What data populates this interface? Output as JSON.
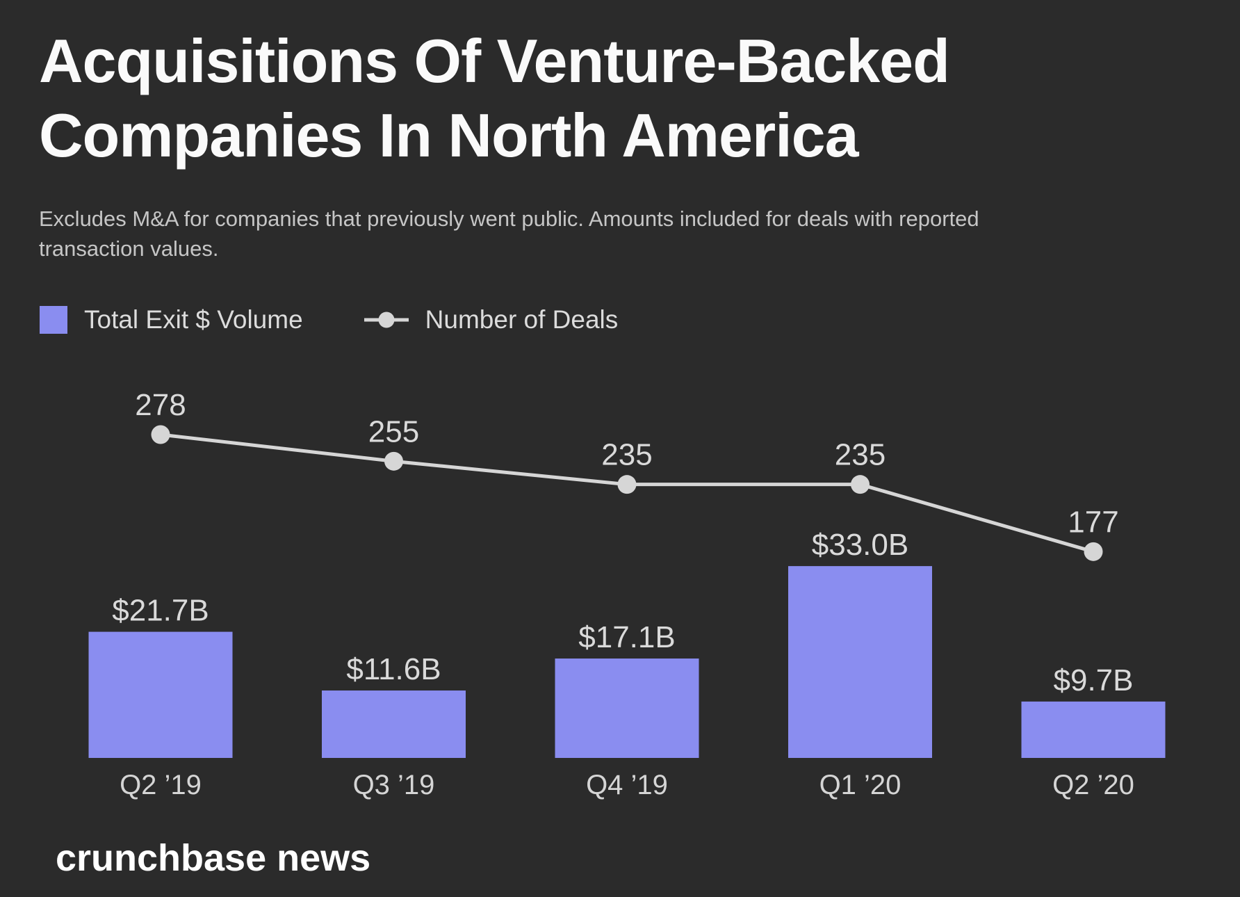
{
  "header": {
    "title_lines": [
      "Acquisitions Of Venture-Backed",
      "Companies In North America"
    ],
    "subtitle_lines": [
      "Excludes M&A for companies that previously went public. Amounts included for deals with reported",
      "transaction values."
    ]
  },
  "legend": {
    "items": [
      {
        "label": "Total Exit $ Volume",
        "marker": "square",
        "color": "#8a8df0"
      },
      {
        "label": "Number of Deals",
        "marker": "line-dot",
        "color": "#d6d6d6"
      }
    ]
  },
  "chart_data": {
    "type": "bar",
    "title": "Acquisitions Of Venture-Backed Companies In North America",
    "subtitle": "Excludes M&A for companies that previously went public. Amounts included for deals with reported transaction values.",
    "categories": [
      "Q2 ’19",
      "Q3 ’19",
      "Q4 ’19",
      "Q1 ’20",
      "Q2 ’20"
    ],
    "series": [
      {
        "name": "Total Exit $ Volume",
        "type": "bar",
        "unit": "USD billions",
        "values": [
          21.7,
          11.6,
          17.1,
          33.0,
          9.7
        ],
        "labels": [
          "$21.7B",
          "$11.6B",
          "$17.1B",
          "$33.0B",
          "$9.7B"
        ],
        "color": "#8a8df0"
      },
      {
        "name": "Number of Deals",
        "type": "line",
        "values": [
          278,
          255,
          235,
          235,
          177
        ],
        "labels": [
          "278",
          "255",
          "235",
          "235",
          "177"
        ],
        "color": "#d6d6d6"
      }
    ],
    "xlabel": "",
    "ylabel": "",
    "grid": false,
    "legend_position": "top-left",
    "background": "#2b2b2b"
  },
  "footer": {
    "brand": "crunchbase news"
  }
}
